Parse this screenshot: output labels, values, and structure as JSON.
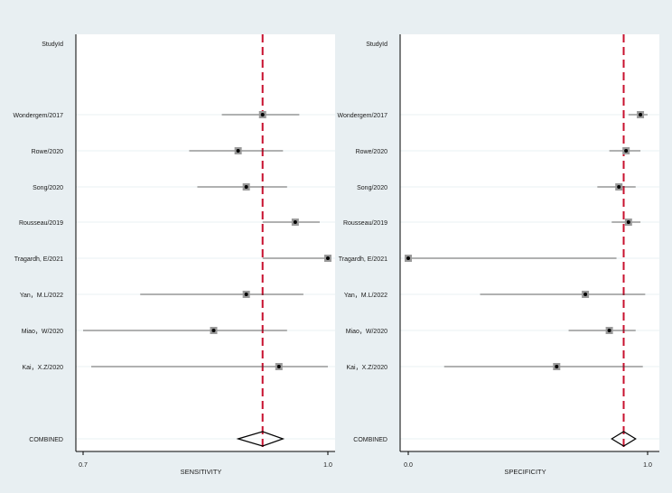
{
  "chart_data": [
    {
      "type": "forest",
      "panel": "sensitivity",
      "header_label": "StudyId",
      "xlabel": "SENSITIVITY",
      "xlim": [
        0.7,
        1.0
      ],
      "xticks": [
        "0.7",
        "1.0"
      ],
      "xtick_values": [
        0.7,
        1.0
      ],
      "reference_line": 0.92,
      "studies": [
        {
          "label": "Wondergem/2017",
          "estimate": 0.92,
          "lower": 0.87,
          "upper": 0.965
        },
        {
          "label": "Rowe/2020",
          "estimate": 0.89,
          "lower": 0.83,
          "upper": 0.945
        },
        {
          "label": "Song/2020",
          "estimate": 0.9,
          "lower": 0.84,
          "upper": 0.95
        },
        {
          "label": "Rousseau/2019",
          "estimate": 0.96,
          "lower": 0.92,
          "upper": 0.99
        },
        {
          "label": "Tragardh, E/2021",
          "estimate": 1.0,
          "lower": 0.92,
          "upper": 1.0
        },
        {
          "label": "Yan，M.L/2022",
          "estimate": 0.9,
          "lower": 0.77,
          "upper": 0.97
        },
        {
          "label": "Miao，W/2020",
          "estimate": 0.86,
          "lower": 0.7,
          "upper": 0.95
        },
        {
          "label": "Kai，X.Z/2020",
          "estimate": 0.94,
          "lower": 0.71,
          "upper": 1.0
        }
      ],
      "combined": {
        "label": "COMBINED",
        "estimate": 0.92,
        "lower": 0.89,
        "upper": 0.945
      }
    },
    {
      "type": "forest",
      "panel": "specificity",
      "header_label": "StudyId",
      "xlabel": "SPECIFICITY",
      "xlim": [
        0.0,
        1.0
      ],
      "xticks": [
        "0.0",
        "1.0"
      ],
      "xtick_values": [
        0.0,
        1.0
      ],
      "reference_line": 0.9,
      "studies": [
        {
          "label": "Wondergem/2017",
          "estimate": 0.97,
          "lower": 0.92,
          "upper": 1.0
        },
        {
          "label": "Rowe/2020",
          "estimate": 0.91,
          "lower": 0.84,
          "upper": 0.97
        },
        {
          "label": "Song/2020",
          "estimate": 0.88,
          "lower": 0.79,
          "upper": 0.95
        },
        {
          "label": "Rousseau/2019",
          "estimate": 0.92,
          "lower": 0.85,
          "upper": 0.97
        },
        {
          "label": "Tragardh, E/2021",
          "estimate": 0.0,
          "lower": 0.0,
          "upper": 0.87
        },
        {
          "label": "Yan，M.L/2022",
          "estimate": 0.74,
          "lower": 0.3,
          "upper": 0.99
        },
        {
          "label": "Miao，W/2020",
          "estimate": 0.84,
          "lower": 0.67,
          "upper": 0.95
        },
        {
          "label": "Kai，X.Z/2020",
          "estimate": 0.62,
          "lower": 0.15,
          "upper": 0.98
        }
      ],
      "combined": {
        "label": "COMBINED",
        "estimate": 0.9,
        "lower": 0.85,
        "upper": 0.95
      }
    }
  ]
}
